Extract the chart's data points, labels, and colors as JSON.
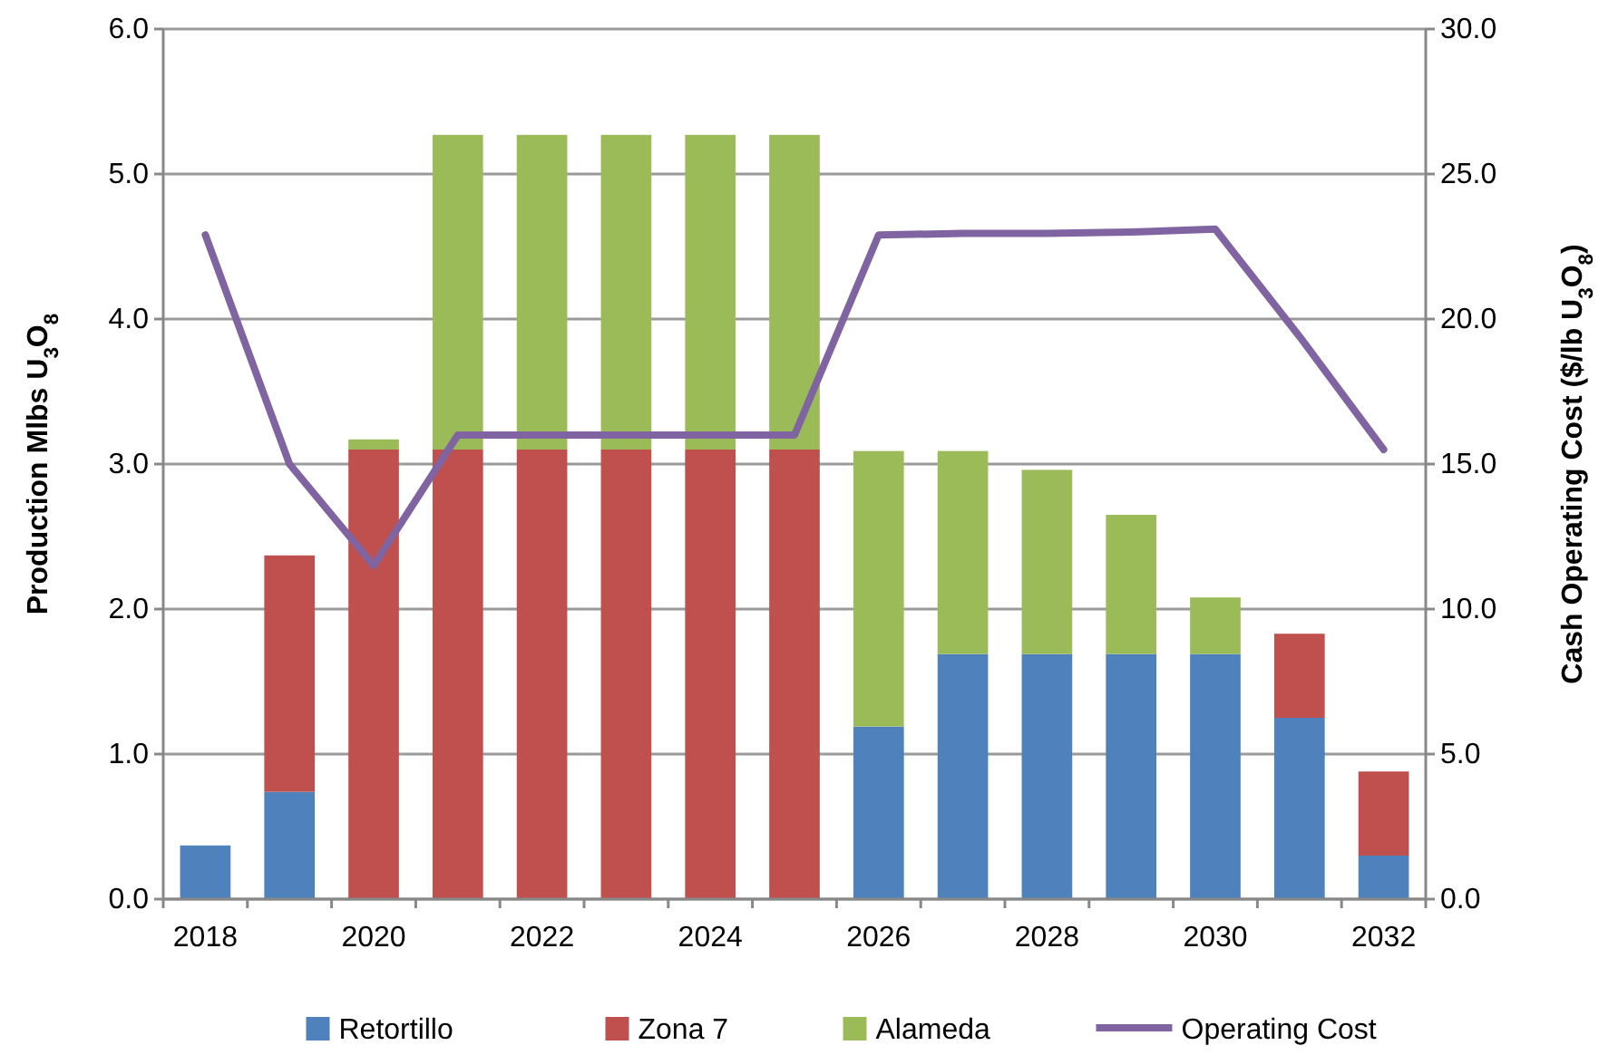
{
  "chart_data": {
    "type": "bar",
    "stacked": true,
    "categories": [
      "2018",
      null,
      "2020",
      null,
      "2022",
      null,
      "2024",
      null,
      "2026",
      null,
      "2028",
      null,
      "2030",
      null,
      "2032"
    ],
    "series": [
      {
        "name": "Retortillo",
        "color": "#4f81bd",
        "values": [
          0.37,
          0.74,
          null,
          null,
          null,
          null,
          null,
          null,
          1.19,
          1.69,
          1.69,
          1.69,
          1.69,
          1.25,
          0.3
        ]
      },
      {
        "name": "Zona 7",
        "color": "#c0504d",
        "values": [
          null,
          1.63,
          3.1,
          3.1,
          3.1,
          3.1,
          3.1,
          3.1,
          null,
          null,
          null,
          null,
          null,
          0.58,
          0.58
        ]
      },
      {
        "name": "Alameda",
        "color": "#9bbb59",
        "values": [
          null,
          null,
          0.07,
          2.17,
          2.17,
          2.17,
          2.17,
          2.17,
          1.9,
          1.4,
          1.27,
          0.96,
          0.39,
          null,
          null
        ]
      },
      {
        "name": "Operating Cost",
        "type": "line",
        "axis": "y2",
        "color": "#8064a2",
        "values": [
          22.9,
          15.0,
          11.5,
          16.0,
          16.0,
          16.0,
          16.0,
          16.0,
          22.9,
          22.95,
          22.95,
          23.0,
          23.1,
          19.4,
          15.5
        ]
      }
    ],
    "ylim": [
      0,
      6
    ],
    "yticks": [
      {
        "value": 0,
        "label": "0.0"
      },
      {
        "value": 1,
        "label": "1.0"
      },
      {
        "value": 2,
        "label": "2.0"
      },
      {
        "value": 3,
        "label": "3.0"
      },
      {
        "value": 4,
        "label": "4.0"
      },
      {
        "value": 5,
        "label": "5.0"
      },
      {
        "value": 6,
        "label": "6.0"
      }
    ],
    "y2lim": [
      0,
      30
    ],
    "y2ticks": [
      {
        "value": 0,
        "label": "0.0"
      },
      {
        "value": 5,
        "label": "5.0"
      },
      {
        "value": 10,
        "label": "10.0"
      },
      {
        "value": 15,
        "label": "15.0"
      },
      {
        "value": 20,
        "label": "20.0"
      },
      {
        "value": 25,
        "label": "25.0"
      },
      {
        "value": 30,
        "label": "30.0"
      }
    ],
    "ylabel": "Production Mlbs U$_{3}$O$_{8}$",
    "y2label": "Cash Operating Cost ($/lb U$_{3}$O$_{8}$)",
    "grid": "y",
    "legend": "bottom"
  }
}
